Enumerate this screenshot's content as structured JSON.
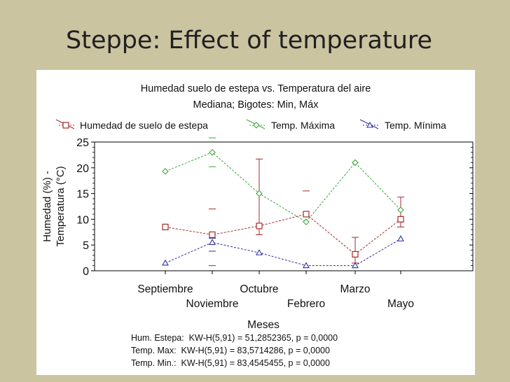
{
  "slide": {
    "title": "Steppe: Effect of temperature"
  },
  "chart_data": {
    "type": "line",
    "title": "Humedad suelo de estepa vs. Temperatura del aire",
    "subtitle": "Mediana;  Bigotes: Min, Máx",
    "xlabel": "Meses",
    "ylabel_line1": "Humedad (%) -",
    "ylabel_line2": "Temperatura (°C)",
    "ylim": [
      0,
      25
    ],
    "yticks": [
      "0",
      "5",
      "10",
      "15",
      "20",
      "25"
    ],
    "categories": [
      "Septiembre",
      "Noviembre",
      "Octubre",
      "Febrero",
      "Marzo",
      "Mayo"
    ],
    "series": [
      {
        "name": "Humedad de suelo de estepa",
        "color": "#a52a2a",
        "marker": "square",
        "values": [
          8.5,
          7,
          8.7,
          11,
          3.2,
          10
        ],
        "min": [
          null,
          1,
          7,
          null,
          1.5,
          8.5
        ],
        "max": [
          null,
          12,
          21.7,
          15.5,
          6.5,
          14.3
        ]
      },
      {
        "name": "Temp. Máxima",
        "color": "#3aa83a",
        "marker": "diamond",
        "values": [
          19.3,
          23,
          15,
          9.5,
          21,
          11.8
        ],
        "min": [
          null,
          20.2,
          null,
          null,
          null,
          null
        ],
        "max": [
          null,
          25.8,
          null,
          null,
          null,
          null
        ]
      },
      {
        "name": "Temp. Mínima",
        "color": "#3030a0",
        "marker": "triangle",
        "values": [
          1.5,
          5.5,
          3.5,
          1,
          1,
          6.2
        ],
        "min": [
          null,
          3.8,
          null,
          null,
          null,
          null
        ],
        "max": [
          null,
          6.3,
          null,
          null,
          null,
          null
        ]
      }
    ],
    "stats": [
      "Hum. Estepa:  KW-H(5,91) = 51,2852365, p = 0,0000",
      "Temp. Max:  KW-H(5,91) = 83,5714286, p = 0,0000",
      "Temp. Min.:  KW-H(5,91) = 83,4545455, p = 0,0000"
    ]
  }
}
